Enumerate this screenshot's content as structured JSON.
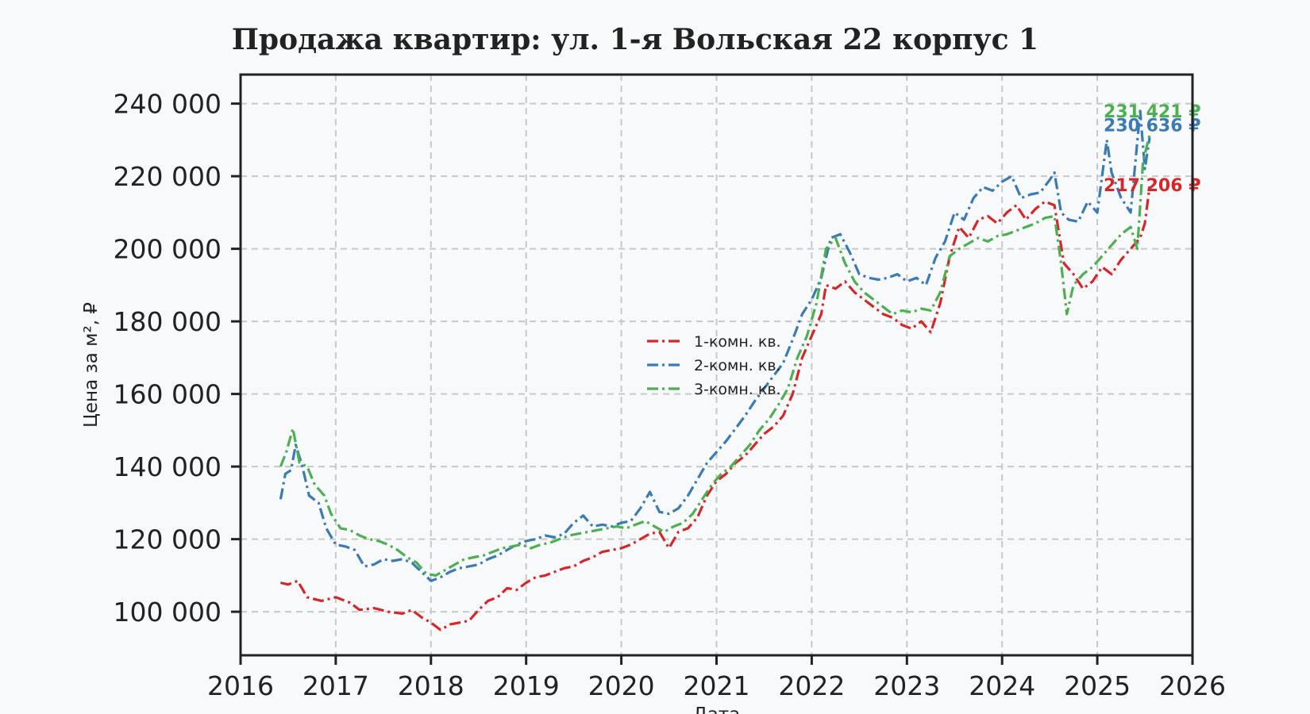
{
  "chart_data": {
    "type": "line",
    "title": "Продажа квартир: ул. 1-я Вольская 22 корпус 1",
    "xlabel": "Дата",
    "ylabel": "Цена за м², ₽",
    "xlim": [
      2016,
      2026
    ],
    "ylim": [
      88000,
      248000
    ],
    "x_ticks": [
      "2016",
      "2017",
      "2018",
      "2019",
      "2020",
      "2021",
      "2022",
      "2023",
      "2024",
      "2025",
      "2026"
    ],
    "y_ticks": [
      "100 000",
      "120 000",
      "140 000",
      "160 000",
      "180 000",
      "200 000",
      "220 000",
      "240 000"
    ],
    "grid": true,
    "legend_position": "center",
    "series": [
      {
        "name": "1-комн. кв.",
        "color": "#d62728",
        "end_label": "217 206 ₽",
        "points": [
          [
            2016.42,
            108000
          ],
          [
            2016.5,
            107500
          ],
          [
            2016.6,
            108500
          ],
          [
            2016.7,
            104000
          ],
          [
            2016.85,
            103000
          ],
          [
            2017.0,
            104000
          ],
          [
            2017.15,
            102500
          ],
          [
            2017.25,
            100500
          ],
          [
            2017.4,
            101000
          ],
          [
            2017.55,
            100000
          ],
          [
            2017.7,
            99500
          ],
          [
            2017.8,
            100500
          ],
          [
            2017.9,
            98500
          ],
          [
            2018.0,
            97000
          ],
          [
            2018.1,
            95000
          ],
          [
            2018.2,
            96500
          ],
          [
            2018.3,
            97000
          ],
          [
            2018.4,
            97500
          ],
          [
            2018.5,
            100500
          ],
          [
            2018.6,
            103000
          ],
          [
            2018.7,
            104000
          ],
          [
            2018.8,
            106500
          ],
          [
            2018.9,
            106000
          ],
          [
            2019.0,
            108000
          ],
          [
            2019.1,
            109500
          ],
          [
            2019.2,
            110000
          ],
          [
            2019.3,
            111000
          ],
          [
            2019.4,
            112000
          ],
          [
            2019.5,
            112500
          ],
          [
            2019.6,
            114000
          ],
          [
            2019.7,
            115000
          ],
          [
            2019.8,
            116500
          ],
          [
            2019.9,
            117000
          ],
          [
            2020.0,
            117500
          ],
          [
            2020.1,
            118500
          ],
          [
            2020.2,
            120000
          ],
          [
            2020.3,
            121500
          ],
          [
            2020.4,
            122000
          ],
          [
            2020.5,
            117500
          ],
          [
            2020.6,
            122000
          ],
          [
            2020.7,
            123000
          ],
          [
            2020.8,
            126000
          ],
          [
            2020.9,
            132000
          ],
          [
            2021.0,
            136000
          ],
          [
            2021.1,
            138000
          ],
          [
            2021.2,
            141000
          ],
          [
            2021.3,
            143000
          ],
          [
            2021.4,
            146000
          ],
          [
            2021.5,
            149000
          ],
          [
            2021.6,
            151000
          ],
          [
            2021.7,
            154000
          ],
          [
            2021.8,
            160000
          ],
          [
            2021.9,
            170000
          ],
          [
            2022.0,
            176000
          ],
          [
            2022.1,
            182000
          ],
          [
            2022.15,
            190000
          ],
          [
            2022.25,
            189000
          ],
          [
            2022.35,
            191000
          ],
          [
            2022.45,
            188000
          ],
          [
            2022.55,
            186000
          ],
          [
            2022.65,
            184000
          ],
          [
            2022.75,
            182000
          ],
          [
            2022.85,
            181000
          ],
          [
            2022.95,
            179000
          ],
          [
            2023.05,
            178000
          ],
          [
            2023.15,
            180000
          ],
          [
            2023.25,
            177000
          ],
          [
            2023.35,
            185000
          ],
          [
            2023.45,
            198000
          ],
          [
            2023.55,
            206000
          ],
          [
            2023.65,
            203000
          ],
          [
            2023.75,
            208000
          ],
          [
            2023.85,
            209000
          ],
          [
            2023.95,
            207000
          ],
          [
            2024.05,
            210000
          ],
          [
            2024.15,
            212000
          ],
          [
            2024.25,
            208000
          ],
          [
            2024.35,
            211000
          ],
          [
            2024.45,
            213000
          ],
          [
            2024.55,
            212000
          ],
          [
            2024.65,
            196000
          ],
          [
            2024.75,
            193000
          ],
          [
            2024.85,
            189000
          ],
          [
            2024.95,
            191000
          ],
          [
            2025.05,
            195000
          ],
          [
            2025.15,
            193000
          ],
          [
            2025.25,
            197000
          ],
          [
            2025.35,
            200000
          ],
          [
            2025.45,
            203000
          ],
          [
            2025.5,
            207000
          ],
          [
            2025.55,
            217206
          ]
        ]
      },
      {
        "name": "2-комн. кв.",
        "color": "#3a7ab5",
        "end_label": "230 636 ₽",
        "points": [
          [
            2016.42,
            131000
          ],
          [
            2016.47,
            138000
          ],
          [
            2016.53,
            139000
          ],
          [
            2016.58,
            146000
          ],
          [
            2016.65,
            140000
          ],
          [
            2016.72,
            132000
          ],
          [
            2016.82,
            130000
          ],
          [
            2016.9,
            123000
          ],
          [
            2017.0,
            118500
          ],
          [
            2017.1,
            118000
          ],
          [
            2017.2,
            117000
          ],
          [
            2017.3,
            112500
          ],
          [
            2017.4,
            113000
          ],
          [
            2017.5,
            114500
          ],
          [
            2017.6,
            114000
          ],
          [
            2017.7,
            114500
          ],
          [
            2017.8,
            113500
          ],
          [
            2017.9,
            111000
          ],
          [
            2018.0,
            108500
          ],
          [
            2018.1,
            109500
          ],
          [
            2018.2,
            111000
          ],
          [
            2018.3,
            112000
          ],
          [
            2018.4,
            112500
          ],
          [
            2018.5,
            113000
          ],
          [
            2018.6,
            114500
          ],
          [
            2018.7,
            115500
          ],
          [
            2018.8,
            117000
          ],
          [
            2018.9,
            118500
          ],
          [
            2019.0,
            119500
          ],
          [
            2019.1,
            120000
          ],
          [
            2019.2,
            121000
          ],
          [
            2019.3,
            120500
          ],
          [
            2019.4,
            121500
          ],
          [
            2019.5,
            124500
          ],
          [
            2019.6,
            126500
          ],
          [
            2019.7,
            123500
          ],
          [
            2019.8,
            124000
          ],
          [
            2019.9,
            123500
          ],
          [
            2020.0,
            124500
          ],
          [
            2020.1,
            125000
          ],
          [
            2020.2,
            128500
          ],
          [
            2020.3,
            133000
          ],
          [
            2020.4,
            127500
          ],
          [
            2020.5,
            127000
          ],
          [
            2020.6,
            128500
          ],
          [
            2020.7,
            132000
          ],
          [
            2020.8,
            136500
          ],
          [
            2020.9,
            141000
          ],
          [
            2021.0,
            144000
          ],
          [
            2021.1,
            147000
          ],
          [
            2021.2,
            150500
          ],
          [
            2021.3,
            154000
          ],
          [
            2021.4,
            158000
          ],
          [
            2021.5,
            161500
          ],
          [
            2021.6,
            165000
          ],
          [
            2021.7,
            168500
          ],
          [
            2021.8,
            175000
          ],
          [
            2021.9,
            182000
          ],
          [
            2022.0,
            186000
          ],
          [
            2022.1,
            192000
          ],
          [
            2022.2,
            203000
          ],
          [
            2022.3,
            204000
          ],
          [
            2022.4,
            199000
          ],
          [
            2022.5,
            193000
          ],
          [
            2022.6,
            192000
          ],
          [
            2022.7,
            191500
          ],
          [
            2022.8,
            192000
          ],
          [
            2022.9,
            193000
          ],
          [
            2023.0,
            191000
          ],
          [
            2023.1,
            192000
          ],
          [
            2023.2,
            190000
          ],
          [
            2023.3,
            197500
          ],
          [
            2023.4,
            202000
          ],
          [
            2023.5,
            210000
          ],
          [
            2023.6,
            208000
          ],
          [
            2023.7,
            214000
          ],
          [
            2023.8,
            217000
          ],
          [
            2023.9,
            216000
          ],
          [
            2024.0,
            218500
          ],
          [
            2024.1,
            220000
          ],
          [
            2024.2,
            214000
          ],
          [
            2024.3,
            215000
          ],
          [
            2024.4,
            215500
          ],
          [
            2024.5,
            219000
          ],
          [
            2024.55,
            221000
          ],
          [
            2024.62,
            210000
          ],
          [
            2024.7,
            208000
          ],
          [
            2024.8,
            207500
          ],
          [
            2024.9,
            213000
          ],
          [
            2025.0,
            210000
          ],
          [
            2025.1,
            230000
          ],
          [
            2025.15,
            221000
          ],
          [
            2025.25,
            214000
          ],
          [
            2025.35,
            210000
          ],
          [
            2025.45,
            238000
          ],
          [
            2025.5,
            222000
          ],
          [
            2025.55,
            230636
          ]
        ]
      },
      {
        "name": "3-комн. кв.",
        "color": "#4caf50",
        "end_label": "231 421 ₽",
        "points": [
          [
            2016.42,
            140000
          ],
          [
            2016.48,
            144000
          ],
          [
            2016.55,
            150500
          ],
          [
            2016.62,
            141000
          ],
          [
            2016.7,
            140000
          ],
          [
            2016.78,
            135000
          ],
          [
            2016.88,
            132000
          ],
          [
            2016.95,
            127000
          ],
          [
            2017.05,
            123000
          ],
          [
            2017.15,
            122500
          ],
          [
            2017.25,
            121000
          ],
          [
            2017.35,
            120000
          ],
          [
            2017.45,
            119500
          ],
          [
            2017.55,
            118500
          ],
          [
            2017.65,
            117000
          ],
          [
            2017.75,
            115000
          ],
          [
            2017.85,
            113500
          ],
          [
            2017.95,
            110500
          ],
          [
            2018.05,
            110000
          ],
          [
            2018.15,
            111500
          ],
          [
            2018.25,
            113000
          ],
          [
            2018.35,
            114500
          ],
          [
            2018.45,
            115000
          ],
          [
            2018.55,
            115500
          ],
          [
            2018.65,
            116500
          ],
          [
            2018.75,
            117500
          ],
          [
            2018.85,
            118000
          ],
          [
            2018.95,
            118500
          ],
          [
            2019.05,
            117500
          ],
          [
            2019.15,
            118500
          ],
          [
            2019.25,
            119000
          ],
          [
            2019.35,
            120000
          ],
          [
            2019.45,
            121000
          ],
          [
            2019.55,
            121500
          ],
          [
            2019.65,
            122000
          ],
          [
            2019.75,
            122500
          ],
          [
            2019.85,
            123000
          ],
          [
            2019.95,
            123500
          ],
          [
            2020.05,
            123000
          ],
          [
            2020.15,
            124000
          ],
          [
            2020.25,
            125000
          ],
          [
            2020.35,
            123500
          ],
          [
            2020.45,
            122000
          ],
          [
            2020.55,
            123500
          ],
          [
            2020.65,
            124500
          ],
          [
            2020.75,
            127000
          ],
          [
            2020.85,
            131000
          ],
          [
            2020.95,
            135000
          ],
          [
            2021.05,
            138000
          ],
          [
            2021.15,
            140000
          ],
          [
            2021.25,
            143000
          ],
          [
            2021.35,
            146000
          ],
          [
            2021.45,
            150000
          ],
          [
            2021.55,
            153000
          ],
          [
            2021.65,
            157000
          ],
          [
            2021.75,
            161500
          ],
          [
            2021.85,
            170000
          ],
          [
            2021.95,
            176000
          ],
          [
            2022.05,
            185000
          ],
          [
            2022.15,
            200000
          ],
          [
            2022.25,
            203000
          ],
          [
            2022.35,
            196000
          ],
          [
            2022.45,
            191000
          ],
          [
            2022.55,
            188000
          ],
          [
            2022.65,
            186000
          ],
          [
            2022.75,
            184000
          ],
          [
            2022.85,
            182000
          ],
          [
            2022.95,
            183000
          ],
          [
            2023.05,
            182500
          ],
          [
            2023.15,
            183500
          ],
          [
            2023.25,
            183000
          ],
          [
            2023.35,
            188000
          ],
          [
            2023.45,
            198000
          ],
          [
            2023.55,
            200000
          ],
          [
            2023.65,
            201500
          ],
          [
            2023.75,
            203000
          ],
          [
            2023.85,
            202000
          ],
          [
            2023.95,
            203500
          ],
          [
            2024.05,
            204000
          ],
          [
            2024.15,
            205000
          ],
          [
            2024.25,
            206000
          ],
          [
            2024.35,
            207000
          ],
          [
            2024.45,
            208500
          ],
          [
            2024.55,
            209000
          ],
          [
            2024.62,
            196000
          ],
          [
            2024.68,
            182000
          ],
          [
            2024.75,
            190000
          ],
          [
            2024.85,
            193000
          ],
          [
            2024.95,
            195000
          ],
          [
            2025.05,
            198000
          ],
          [
            2025.15,
            201000
          ],
          [
            2025.25,
            204000
          ],
          [
            2025.35,
            206000
          ],
          [
            2025.42,
            200000
          ],
          [
            2025.48,
            224000
          ],
          [
            2025.55,
            231421
          ]
        ]
      }
    ]
  }
}
